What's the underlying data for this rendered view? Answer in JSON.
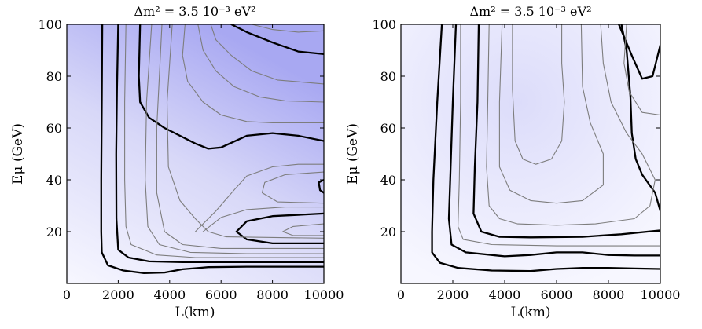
{
  "chart_data": [
    {
      "type": "contour",
      "title": "Δm² =  3.5 10⁻³ eV²",
      "xlabel": "L(km)",
      "ylabel": "Eμ (GeV)",
      "xlim": [
        0,
        10000
      ],
      "ylim": [
        0,
        100
      ],
      "xticks": [
        0,
        2000,
        4000,
        6000,
        8000,
        10000
      ],
      "yticks": [
        20,
        40,
        60,
        80,
        100
      ],
      "grid": false,
      "fill_color_low": "#f7f7ff",
      "fill_color_high": "#a8a8f2",
      "contours": [
        {
          "style": "black",
          "points": [
            [
              1380,
              100
            ],
            [
              1360,
              70
            ],
            [
              1340,
              40
            ],
            [
              1340,
              20
            ],
            [
              1360,
              12
            ],
            [
              1600,
              7
            ],
            [
              2200,
              5
            ],
            [
              3000,
              4
            ],
            [
              3800,
              4.2
            ],
            [
              4500,
              5.5
            ],
            [
              5500,
              6.3
            ],
            [
              7000,
              6.5
            ],
            [
              8500,
              6.5
            ],
            [
              10000,
              6.5
            ]
          ]
        },
        {
          "style": "black",
          "points": [
            [
              2000,
              100
            ],
            [
              1950,
              75
            ],
            [
              1920,
              50
            ],
            [
              1930,
              25
            ],
            [
              2000,
              13
            ],
            [
              2400,
              10
            ],
            [
              3200,
              8.5
            ],
            [
              4500,
              8.2
            ],
            [
              6000,
              8.2
            ],
            [
              8000,
              8.2
            ],
            [
              10000,
              8.2
            ]
          ]
        },
        {
          "style": "black",
          "points": [
            [
              2850,
              100
            ],
            [
              2800,
              80
            ],
            [
              2850,
              70
            ],
            [
              3200,
              64
            ],
            [
              3800,
              60
            ],
            [
              4400,
              57
            ],
            [
              5000,
              54
            ],
            [
              5500,
              52
            ],
            [
              6000,
              52.5
            ],
            [
              7000,
              57
            ],
            [
              8000,
              58
            ],
            [
              9000,
              57
            ],
            [
              10000,
              55
            ]
          ]
        },
        {
          "style": "black",
          "points": [
            [
              6400,
              100
            ],
            [
              7000,
              97
            ],
            [
              8000,
              93
            ],
            [
              9000,
              89.5
            ],
            [
              10000,
              88.5
            ]
          ]
        },
        {
          "style": "black",
          "points": [
            [
              10000,
              40
            ],
            [
              9800,
              39
            ],
            [
              9850,
              36
            ],
            [
              10000,
              35
            ]
          ]
        },
        {
          "style": "black",
          "points": [
            [
              10000,
              27
            ],
            [
              8000,
              26
            ],
            [
              7000,
              24
            ],
            [
              6600,
              20
            ],
            [
              7000,
              17
            ],
            [
              8000,
              15.5
            ],
            [
              10000,
              15.5
            ]
          ]
        },
        {
          "style": "gray",
          "points": [
            [
              2300,
              100
            ],
            [
              2250,
              70
            ],
            [
              2250,
              40
            ],
            [
              2300,
              22
            ],
            [
              2500,
              15
            ],
            [
              3500,
              11
            ],
            [
              5000,
              10
            ],
            [
              7500,
              10
            ],
            [
              10000,
              10
            ]
          ]
        },
        {
          "style": "gray",
          "points": [
            [
              3300,
              100
            ],
            [
              3100,
              70
            ],
            [
              3050,
              40
            ],
            [
              3150,
              22
            ],
            [
              3600,
              15
            ],
            [
              4800,
              12
            ],
            [
              7000,
              11.5
            ],
            [
              10000,
              11.5
            ]
          ]
        },
        {
          "style": "gray",
          "points": [
            [
              3700,
              100
            ],
            [
              3500,
              60
            ],
            [
              3500,
              35
            ],
            [
              3800,
              20
            ],
            [
              4500,
              15
            ],
            [
              6000,
              13.5
            ],
            [
              10000,
              13.5
            ]
          ]
        },
        {
          "style": "gray",
          "points": [
            [
              4100,
              100
            ],
            [
              3900,
              70
            ],
            [
              3950,
              45
            ],
            [
              4400,
              32
            ],
            [
              5000,
              25
            ],
            [
              5500,
              20
            ],
            [
              6200,
              18
            ],
            [
              10000,
              17.5
            ]
          ]
        },
        {
          "style": "gray",
          "points": [
            [
              4600,
              100
            ],
            [
              4500,
              88
            ],
            [
              4700,
              78
            ],
            [
              5300,
              70
            ],
            [
              6000,
              65
            ],
            [
              7000,
              62.5
            ],
            [
              8000,
              62
            ],
            [
              10000,
              62
            ]
          ]
        },
        {
          "style": "gray",
          "points": [
            [
              5100,
              100
            ],
            [
              5300,
              90
            ],
            [
              5800,
              82
            ],
            [
              6500,
              76
            ],
            [
              7500,
              72
            ],
            [
              8500,
              70.5
            ],
            [
              10000,
              70
            ]
          ]
        },
        {
          "style": "gray",
          "points": [
            [
              5600,
              100
            ],
            [
              5800,
              94
            ],
            [
              6400,
              88
            ],
            [
              7200,
              82
            ],
            [
              8200,
              78.5
            ],
            [
              10000,
              77
            ]
          ]
        },
        {
          "style": "gray",
          "points": [
            [
              7200,
              100
            ],
            [
              8000,
              98
            ],
            [
              9000,
              97
            ],
            [
              10000,
              97.5
            ]
          ]
        },
        {
          "style": "gray",
          "points": [
            [
              5000,
              20
            ],
            [
              5800,
              28
            ],
            [
              6500,
              36
            ],
            [
              7000,
              41.5
            ],
            [
              8000,
              45
            ],
            [
              9000,
              46
            ],
            [
              10000,
              46
            ]
          ]
        },
        {
          "style": "gray",
          "points": [
            [
              10000,
              43
            ],
            [
              8500,
              42
            ],
            [
              7700,
              39
            ],
            [
              7600,
              35
            ],
            [
              8200,
              31.5
            ],
            [
              10000,
              31
            ]
          ]
        },
        {
          "style": "gray",
          "points": [
            [
              5300,
              20
            ],
            [
              6000,
              25.5
            ],
            [
              7000,
              28.5
            ],
            [
              8500,
              29.5
            ],
            [
              10000,
              29.5
            ]
          ]
        },
        {
          "style": "gray",
          "points": [
            [
              10000,
              23
            ],
            [
              8800,
              22
            ],
            [
              8400,
              20
            ],
            [
              8800,
              18.5
            ],
            [
              10000,
              18.5
            ]
          ]
        },
        {
          "style": "gray",
          "points": [
            [
              10000,
              10
            ],
            [
              9000,
              10
            ],
            [
              7500,
              10
            ]
          ]
        }
      ]
    },
    {
      "type": "contour",
      "title": "Δm² =  3.5 10⁻³ eV²",
      "xlabel": "L(km)",
      "ylabel": "Eμ (GeV)",
      "xlim": [
        0,
        10000
      ],
      "ylim": [
        0,
        100
      ],
      "xticks": [
        0,
        2000,
        4000,
        6000,
        8000,
        10000
      ],
      "yticks": [
        20,
        40,
        60,
        80,
        100
      ],
      "grid": false,
      "fill_color_low": "#f7f7ff",
      "fill_color_high": "#dcdcfa",
      "contours": [
        {
          "style": "black",
          "points": [
            [
              1580,
              100
            ],
            [
              1400,
              70
            ],
            [
              1250,
              40
            ],
            [
              1200,
              20
            ],
            [
              1200,
              12
            ],
            [
              1500,
              8
            ],
            [
              2200,
              6
            ],
            [
              3500,
              5
            ],
            [
              5000,
              4.8
            ],
            [
              6000,
              5.6
            ],
            [
              7000,
              6
            ],
            [
              8000,
              6
            ],
            [
              9000,
              5.8
            ],
            [
              10000,
              5.6
            ]
          ]
        },
        {
          "style": "black",
          "points": [
            [
              2120,
              100
            ],
            [
              2000,
              70
            ],
            [
              1900,
              40
            ],
            [
              1850,
              25
            ],
            [
              1950,
              15
            ],
            [
              2500,
              12
            ],
            [
              4000,
              10.5
            ],
            [
              5000,
              11
            ],
            [
              6000,
              12
            ],
            [
              7000,
              12
            ],
            [
              8000,
              11
            ],
            [
              9000,
              10.8
            ],
            [
              10000,
              10.8
            ]
          ]
        },
        {
          "style": "black",
          "points": [
            [
              3000,
              100
            ],
            [
              2950,
              70
            ],
            [
              2850,
              45
            ],
            [
              2800,
              27
            ],
            [
              3100,
              20
            ],
            [
              3800,
              18
            ],
            [
              5000,
              17.8
            ],
            [
              7000,
              18
            ],
            [
              8500,
              19
            ],
            [
              10000,
              20.5
            ]
          ]
        },
        {
          "style": "black",
          "points": [
            [
              8400,
              100
            ],
            [
              8900,
              88
            ],
            [
              9300,
              79
            ],
            [
              9700,
              80
            ],
            [
              10000,
              92
            ]
          ]
        },
        {
          "style": "black",
          "points": [
            [
              10000,
              28
            ],
            [
              9800,
              35
            ],
            [
              9300,
              42
            ],
            [
              9050,
              48
            ],
            [
              8900,
              58
            ],
            [
              8850,
              72
            ],
            [
              8700,
              90
            ],
            [
              8500,
              100
            ]
          ]
        },
        {
          "style": "gray",
          "points": [
            [
              2300,
              100
            ],
            [
              2300,
              70
            ],
            [
              2250,
              40
            ],
            [
              2200,
              22
            ],
            [
              2400,
              17
            ],
            [
              3500,
              15
            ],
            [
              6000,
              14.5
            ],
            [
              10000,
              14.5
            ]
          ]
        },
        {
          "style": "gray",
          "points": [
            [
              3400,
              100
            ],
            [
              3350,
              70
            ],
            [
              3300,
              45
            ],
            [
              3400,
              30
            ],
            [
              3800,
              25
            ],
            [
              4500,
              23
            ],
            [
              6000,
              22.5
            ],
            [
              7500,
              23
            ],
            [
              9000,
              25
            ],
            [
              9600,
              30
            ],
            [
              9800,
              40
            ],
            [
              9300,
              50
            ],
            [
              8700,
              58
            ],
            [
              8100,
              70
            ],
            [
              7800,
              85
            ],
            [
              7700,
              100
            ]
          ]
        },
        {
          "style": "gray",
          "points": [
            [
              3900,
              100
            ],
            [
              3800,
              70
            ],
            [
              3800,
              45
            ],
            [
              4200,
              36
            ],
            [
              5000,
              32
            ],
            [
              6000,
              31
            ],
            [
              7000,
              32
            ],
            [
              7800,
              38
            ],
            [
              7800,
              50
            ],
            [
              7300,
              62
            ],
            [
              7000,
              76
            ],
            [
              6950,
              100
            ]
          ]
        },
        {
          "style": "gray",
          "points": [
            [
              4300,
              100
            ],
            [
              4300,
              75
            ],
            [
              4400,
              55
            ],
            [
              4700,
              48
            ],
            [
              5200,
              46
            ],
            [
              5800,
              48
            ],
            [
              6200,
              55
            ],
            [
              6300,
              70
            ],
            [
              6200,
              85
            ],
            [
              6200,
              100
            ]
          ]
        },
        {
          "style": "gray",
          "points": [
            [
              10000,
              65
            ],
            [
              9300,
              66
            ],
            [
              8800,
              74
            ],
            [
              8600,
              85
            ],
            [
              8700,
              100
            ]
          ]
        }
      ]
    }
  ]
}
